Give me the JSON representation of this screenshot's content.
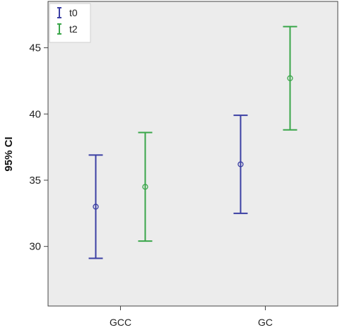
{
  "chart_data": {
    "type": "errorbar",
    "title": "",
    "xlabel": "",
    "ylabel": "95% CI",
    "categories": [
      "GCC",
      "GC"
    ],
    "ylim": [
      25.5,
      48.5
    ],
    "yticks": [
      30,
      35,
      40,
      45
    ],
    "yticklabels": [
      "30",
      "35",
      "40",
      "45"
    ],
    "grid": false,
    "legend_position": "top-left",
    "background": "#ececec",
    "series": [
      {
        "name": "t0",
        "color": "#3b3fa3",
        "mean": [
          33.0,
          36.2
        ],
        "lower": [
          29.1,
          32.5
        ],
        "upper": [
          36.9,
          39.9
        ]
      },
      {
        "name": "t2",
        "color": "#3aa64a",
        "mean": [
          34.5,
          42.7
        ],
        "lower": [
          30.4,
          38.8
        ],
        "upper": [
          38.6,
          46.6
        ]
      }
    ]
  }
}
